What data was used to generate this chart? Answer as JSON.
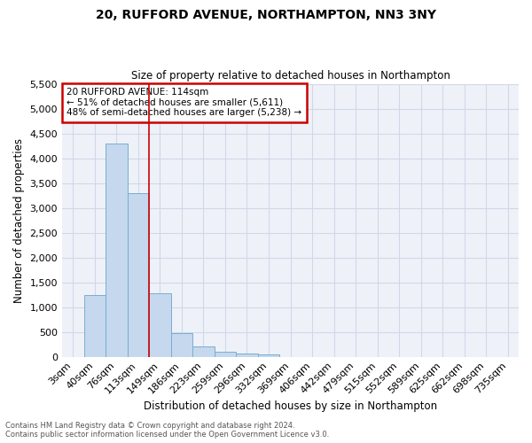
{
  "title1": "20, RUFFORD AVENUE, NORTHAMPTON, NN3 3NY",
  "title2": "Size of property relative to detached houses in Northampton",
  "xlabel": "Distribution of detached houses by size in Northampton",
  "ylabel": "Number of detached properties",
  "footnote1": "Contains HM Land Registry data © Crown copyright and database right 2024.",
  "footnote2": "Contains public sector information licensed under the Open Government Licence v3.0.",
  "bar_labels": [
    "3sqm",
    "40sqm",
    "76sqm",
    "113sqm",
    "149sqm",
    "186sqm",
    "223sqm",
    "259sqm",
    "296sqm",
    "332sqm",
    "369sqm",
    "406sqm",
    "442sqm",
    "479sqm",
    "515sqm",
    "552sqm",
    "589sqm",
    "625sqm",
    "662sqm",
    "698sqm",
    "735sqm"
  ],
  "bar_values": [
    0,
    1250,
    4300,
    3300,
    1270,
    480,
    200,
    100,
    70,
    50,
    0,
    0,
    0,
    0,
    0,
    0,
    0,
    0,
    0,
    0,
    0
  ],
  "bar_color": "#c5d8ed",
  "bar_edge_color": "#7aadd4",
  "property_line_index": 3,
  "property_line_color": "#cc0000",
  "ylim_max": 5500,
  "yticks": [
    0,
    500,
    1000,
    1500,
    2000,
    2500,
    3000,
    3500,
    4000,
    4500,
    5000,
    5500
  ],
  "annotation_title": "20 RUFFORD AVENUE: 114sqm",
  "annotation_line1": "← 51% of detached houses are smaller (5,611)",
  "annotation_line2": "48% of semi-detached houses are larger (5,238) →",
  "annotation_box_color": "#cc0000",
  "grid_color": "#d0d8e8",
  "bg_color": "#eef2f8"
}
